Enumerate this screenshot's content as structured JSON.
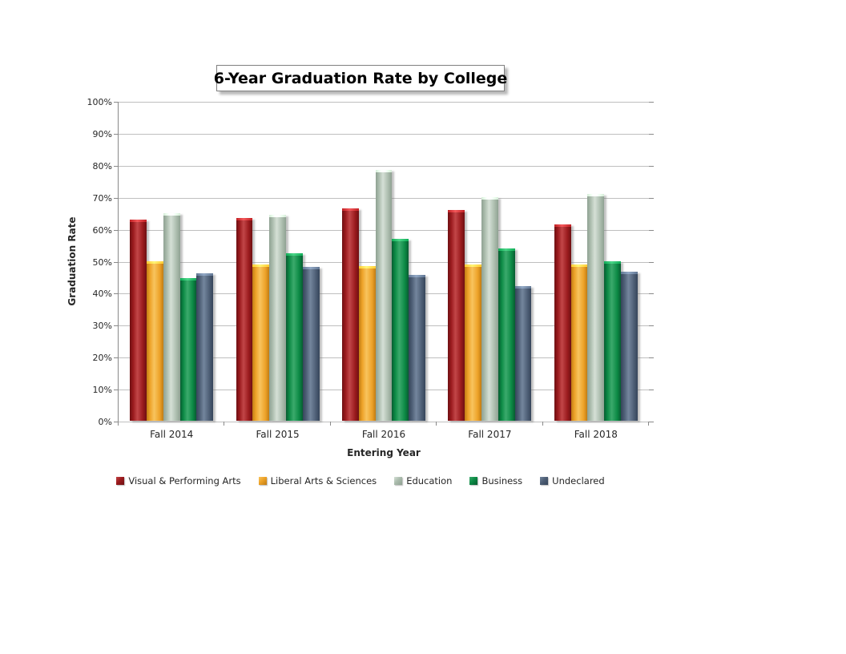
{
  "title": "6-Year Graduation Rate by College",
  "axes": {
    "x_label": "Entering Year",
    "y_label": "Graduation Rate"
  },
  "chart_data": {
    "type": "bar",
    "title": "6-Year Graduation Rate by College",
    "xlabel": "Entering Year",
    "ylabel": "Graduation Rate",
    "categories": [
      "Fall 2014",
      "Fall 2015",
      "Fall 2016",
      "Fall 2017",
      "Fall 2018"
    ],
    "series": [
      {
        "name": "Visual & Performing Arts",
        "values": [
          63,
          63.5,
          66.5,
          66,
          61.5
        ],
        "color": {
          "edge": "#6E1013",
          "base": "#9A1A1D",
          "light": "#C24648"
        }
      },
      {
        "name": "Liberal Arts & Sciences",
        "values": [
          50,
          49,
          48.5,
          49,
          49
        ],
        "color": {
          "edge": "#C07C14",
          "base": "#EDA228",
          "light": "#F8C45E"
        }
      },
      {
        "name": "Education",
        "values": [
          65,
          64.5,
          78.5,
          70,
          71
        ],
        "color": {
          "edge": "#8FA192",
          "base": "#ABBCAD",
          "light": "#D5E0D6"
        }
      },
      {
        "name": "Business",
        "values": [
          44.5,
          52.5,
          57,
          54,
          50
        ],
        "color": {
          "edge": "#075C31",
          "base": "#0C8A45",
          "light": "#3BAA6C"
        }
      },
      {
        "name": "Undeclared",
        "values": [
          46,
          48,
          45.5,
          42,
          46.5
        ],
        "color": {
          "edge": "#36455A",
          "base": "#4D5E75",
          "light": "#74869D"
        }
      }
    ],
    "ylim": [
      0,
      100
    ],
    "ytick_step": 10,
    "ytick_labels": [
      "0%",
      "10%",
      "20%",
      "30%",
      "40%",
      "50%",
      "60%",
      "70%",
      "80%",
      "90%",
      "100%"
    ],
    "grid": "horizontal",
    "legend_position": "bottom"
  },
  "colors": {
    "gridline": "#BFBFBF",
    "axis": "#898989",
    "text": "#262626",
    "title_border": "#808080",
    "background": "#FFFFFF"
  }
}
